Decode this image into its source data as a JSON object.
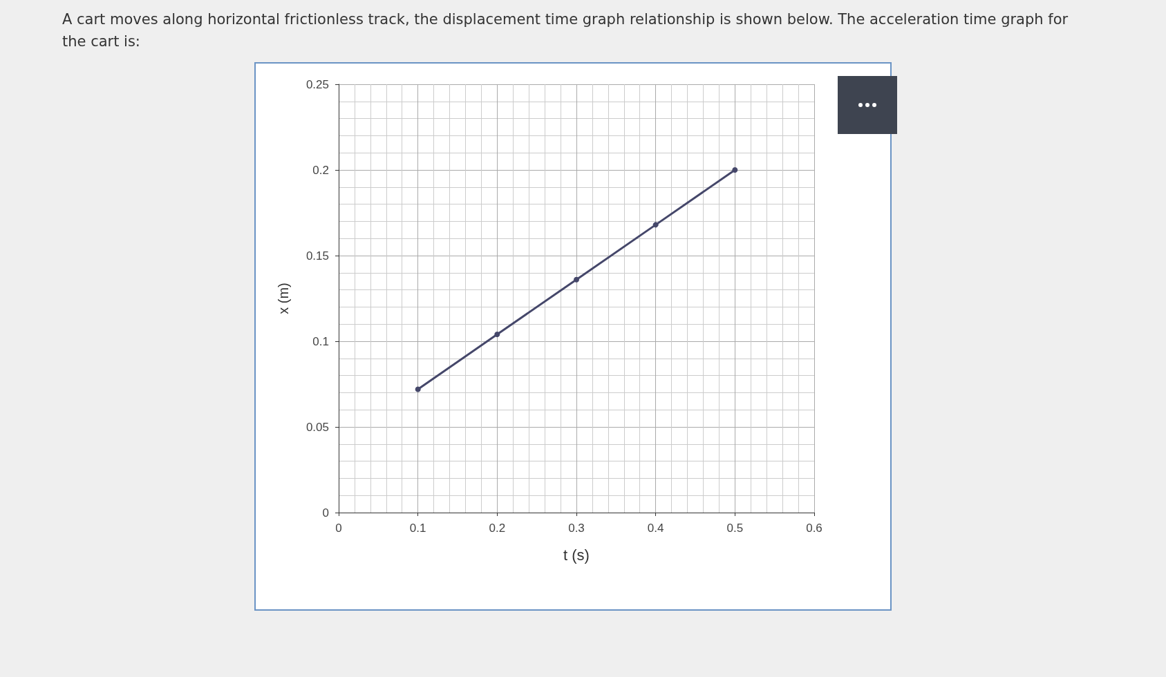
{
  "chart_data": {
    "type": "line",
    "title": "A cart moves along horizontal frictionless track, the displacement time graph relationship is shown below. The acceleration time graph for the cart is:",
    "xlabel": "t (s)",
    "ylabel": "x (m)",
    "x": [
      0.1,
      0.2,
      0.3,
      0.4,
      0.5
    ],
    "series": [
      {
        "color": "#45476a",
        "values": [
          0.072,
          0.104,
          0.136,
          0.168,
          0.2
        ]
      }
    ],
    "xlim": [
      0,
      0.6
    ],
    "xticks": [
      0,
      0.1,
      0.2,
      0.3,
      0.4,
      0.5,
      0.6
    ],
    "ylim": [
      0,
      0.25
    ],
    "yticks": [
      0,
      0.05,
      0.1,
      0.15,
      0.2,
      0.25
    ],
    "grid": true,
    "marker": "circle",
    "line_style": "solid"
  }
}
